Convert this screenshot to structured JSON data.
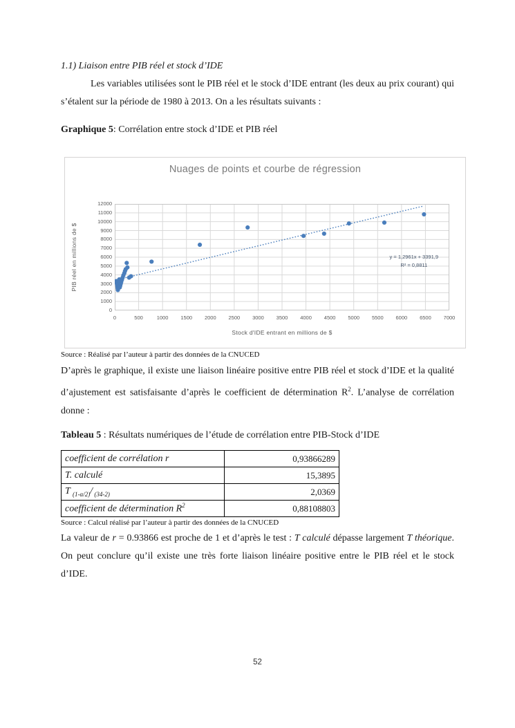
{
  "page": {
    "heading": "1.1) Liaison entre PIB réel et stock d’IDE",
    "para1": "Les variables utilisées sont le PIB réel et le stock d’IDE entrant (les deux au prix courant) qui s’étalent sur la période de 1980 à 2013. On a les résultats suivants :",
    "graphique_bold": "Graphique 5",
    "graphique_rest": ": Corrélation entre stock d’IDE et PIB réel",
    "chart_source": "Source : Réalisé par l’auteur à partir des données de la CNUCED",
    "para2_a": "D’après le graphique, il existe une liaison linéaire positive entre PIB réel et stock d’IDE et la qualité d’ajustement est satisfaisante d’après le coefficient de détermination R",
    "para2_sup": "2",
    "para2_b": ". L’analyse de corrélation donne :",
    "table_title_bold": "Tableau 5",
    "table_title_rest": " : Résultats numériques de l’étude de corrélation entre PIB-Stock d’IDE",
    "table_source": "Source : Calcul réalisé par l’auteur à partir des données de la CNUCED",
    "para3_a": "La valeur de ",
    "para3_r": "r",
    "para3_b": " = 0.93866 est proche de 1 et d’après le test : ",
    "para3_tcalc": "T calculé",
    "para3_c": "  dépasse largement ",
    "para3_ttheo": "T théorique",
    "para3_d": ". On peut conclure qu’il existe une très forte liaison linéaire positive entre le PIB réel et le stock d’IDE.",
    "page_number": "52"
  },
  "table": {
    "rows": [
      {
        "label": "coefficient de corrélation r",
        "value": "0,93866289"
      },
      {
        "label": "T. calculé",
        "value": "15,3895"
      },
      {
        "label_t1": "T ",
        "sub1": "(1-α/2)",
        "sep": "/",
        "sub2": " (34-2)",
        "value": "2,0369"
      },
      {
        "label": "coefficient de détermination R",
        "label_sup": "2",
        "value": "0,88108803"
      }
    ]
  },
  "chart_data": {
    "type": "scatter",
    "title": "Nuages de points et courbe de régression",
    "xlabel": "Stock d'IDE entrant en millions de $",
    "ylabel": "PIB réel en millions de $",
    "xlim": [
      0,
      7000
    ],
    "ylim": [
      0,
      12000
    ],
    "xtick_step": 500,
    "ytick_step": 1000,
    "grid": true,
    "legend": "none",
    "marker_color": "#4a7ebc",
    "gridline_color": "#d9d9d9",
    "axis_box_color": "#c6c6c6",
    "points": [
      [
        30,
        3300
      ],
      [
        40,
        3100
      ],
      [
        50,
        2900
      ],
      [
        55,
        2700
      ],
      [
        60,
        2500
      ],
      [
        65,
        2300
      ],
      [
        70,
        2450
      ],
      [
        75,
        2650
      ],
      [
        80,
        2850
      ],
      [
        85,
        3050
      ],
      [
        90,
        3250
      ],
      [
        95,
        3500
      ],
      [
        105,
        2600
      ],
      [
        115,
        2800
      ],
      [
        125,
        3000
      ],
      [
        135,
        3200
      ],
      [
        150,
        3450
      ],
      [
        165,
        3700
      ],
      [
        180,
        3950
      ],
      [
        200,
        4200
      ],
      [
        215,
        4450
      ],
      [
        230,
        4650
      ],
      [
        300,
        3700
      ],
      [
        340,
        3850
      ],
      [
        250,
        5350
      ],
      [
        265,
        4850
      ],
      [
        770,
        5500
      ],
      [
        1780,
        7400
      ],
      [
        2780,
        9350
      ],
      [
        3950,
        8400
      ],
      [
        4380,
        8650
      ],
      [
        4900,
        9800
      ],
      [
        5640,
        9900
      ],
      [
        6470,
        10830
      ]
    ],
    "trendline": {
      "slope": 1.2961,
      "intercept": 3391.9,
      "x_start": 0,
      "x_end": 6450,
      "style": "dotted",
      "color": "#4a7ebc",
      "label_line1": "y = 1,2961x + 3391,9",
      "label_line2": "R² = 0,8811"
    }
  }
}
